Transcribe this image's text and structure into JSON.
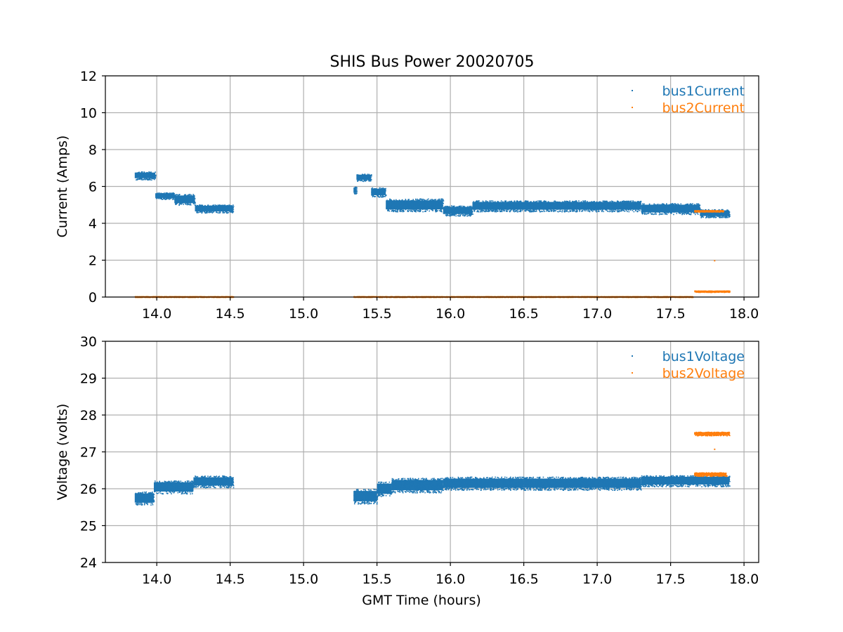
{
  "figure_title": "SHIS Bus Power 20020705",
  "colors": {
    "series1": "#1f77b4",
    "series2": "#ff7f0e",
    "grid": "#b0b0b0",
    "axis": "#000000"
  },
  "chart_data": [
    {
      "type": "scatter",
      "title": "SHIS Bus Power 20020705",
      "xlabel": "",
      "ylabel": "Current (Amps)",
      "xlim": [
        13.65,
        18.1
      ],
      "ylim": [
        0,
        12
      ],
      "xticks": [
        14.0,
        14.5,
        15.0,
        15.5,
        16.0,
        16.5,
        17.0,
        17.5,
        18.0
      ],
      "xtick_labels": [
        "14.0",
        "14.5",
        "15.0",
        "15.5",
        "16.0",
        "16.5",
        "17.0",
        "17.5",
        "18.0"
      ],
      "yticks": [
        0,
        2,
        4,
        6,
        8,
        10,
        12
      ],
      "ytick_labels": [
        "0",
        "2",
        "4",
        "6",
        "8",
        "10",
        "12"
      ],
      "grid": true,
      "legend_position": "top-right",
      "series": [
        {
          "name": "bus1Current",
          "color": "#1f77b4",
          "segments": [
            {
              "x": [
                13.85,
                13.99
              ],
              "y": 6.6,
              "spread": 0.22
            },
            {
              "x": [
                13.99,
                14.12
              ],
              "y": 5.5,
              "spread": 0.18
            },
            {
              "x": [
                14.12,
                14.26
              ],
              "y": 5.3,
              "spread": 0.3
            },
            {
              "x": [
                14.26,
                14.52
              ],
              "y": 4.8,
              "spread": 0.22
            },
            {
              "x": [
                15.34,
                15.36
              ],
              "y": 5.8,
              "spread": 0.2
            },
            {
              "x": [
                15.36,
                15.46
              ],
              "y": 6.5,
              "spread": 0.2
            },
            {
              "x": [
                15.46,
                15.56
              ],
              "y": 5.7,
              "spread": 0.25
            },
            {
              "x": [
                15.56,
                15.95
              ],
              "y": 5.0,
              "spread": 0.35
            },
            {
              "x": [
                15.95,
                16.15
              ],
              "y": 4.7,
              "spread": 0.28
            },
            {
              "x": [
                16.15,
                17.3
              ],
              "y": 4.95,
              "spread": 0.3
            },
            {
              "x": [
                17.3,
                17.7
              ],
              "y": 4.8,
              "spread": 0.3
            },
            {
              "x": [
                17.7,
                17.9
              ],
              "y": 4.55,
              "spread": 0.22
            }
          ]
        },
        {
          "name": "bus2Current",
          "color": "#ff7f0e",
          "segments": [
            {
              "x": [
                13.85,
                14.52
              ],
              "y": 0.03,
              "spread": 0.02
            },
            {
              "x": [
                15.34,
                17.65
              ],
              "y": 0.03,
              "spread": 0.02
            },
            {
              "x": [
                17.66,
                17.9
              ],
              "y": 0.32,
              "spread": 0.04
            },
            {
              "x": [
                17.66,
                17.86
              ],
              "y": 4.68,
              "spread": 0.04
            }
          ],
          "points": [
            {
              "x": 17.8,
              "y": 1.97
            }
          ]
        }
      ]
    },
    {
      "type": "scatter",
      "title": "",
      "xlabel": "GMT Time (hours)",
      "ylabel": "Voltage (volts)",
      "xlim": [
        13.65,
        18.1
      ],
      "ylim": [
        24,
        30
      ],
      "xticks": [
        14.0,
        14.5,
        15.0,
        15.5,
        16.0,
        16.5,
        17.0,
        17.5,
        18.0
      ],
      "xtick_labels": [
        "14.0",
        "14.5",
        "15.0",
        "15.5",
        "16.0",
        "16.5",
        "17.0",
        "17.5",
        "18.0"
      ],
      "yticks": [
        24,
        25,
        26,
        27,
        28,
        29,
        30
      ],
      "ytick_labels": [
        "24",
        "25",
        "26",
        "27",
        "28",
        "29",
        "30"
      ],
      "grid": true,
      "legend_position": "top-right",
      "series": [
        {
          "name": "bus1Voltage",
          "color": "#1f77b4",
          "segments": [
            {
              "x": [
                13.85,
                13.98
              ],
              "y": 25.75,
              "spread": 0.18
            },
            {
              "x": [
                13.98,
                14.25
              ],
              "y": 26.05,
              "spread": 0.18
            },
            {
              "x": [
                14.25,
                14.52
              ],
              "y": 26.2,
              "spread": 0.16
            },
            {
              "x": [
                15.34,
                15.5
              ],
              "y": 25.8,
              "spread": 0.2
            },
            {
              "x": [
                15.5,
                15.6
              ],
              "y": 26.0,
              "spread": 0.2
            },
            {
              "x": [
                15.6,
                15.95
              ],
              "y": 26.1,
              "spread": 0.2
            },
            {
              "x": [
                15.95,
                16.5
              ],
              "y": 26.15,
              "spread": 0.18
            },
            {
              "x": [
                16.5,
                17.3
              ],
              "y": 26.15,
              "spread": 0.18
            },
            {
              "x": [
                17.3,
                17.9
              ],
              "y": 26.22,
              "spread": 0.15
            }
          ]
        },
        {
          "name": "bus2Voltage",
          "color": "#ff7f0e",
          "segments": [
            {
              "x": [
                17.66,
                17.9
              ],
              "y": 27.5,
              "spread": 0.05
            },
            {
              "x": [
                17.66,
                17.88
              ],
              "y": 26.4,
              "spread": 0.05
            }
          ],
          "points": [
            {
              "x": 17.8,
              "y": 27.07
            }
          ]
        }
      ]
    }
  ]
}
